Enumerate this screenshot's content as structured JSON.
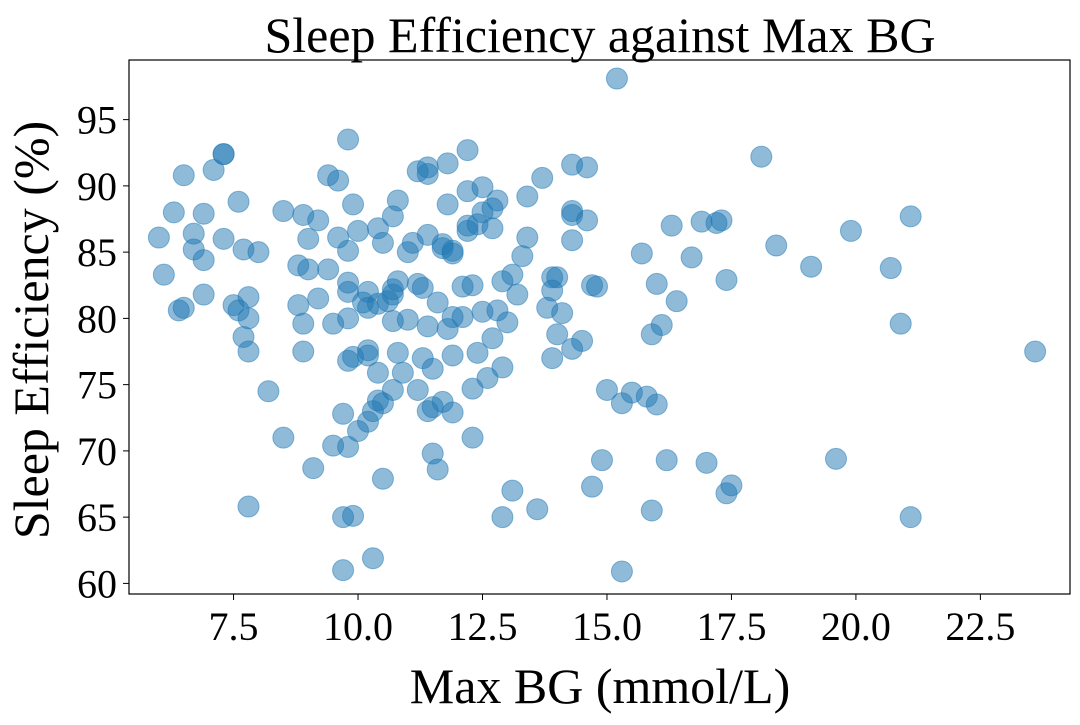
{
  "chart_data": {
    "type": "scatter",
    "title": "Sleep Efficiency against Max BG",
    "xlabel": "Max BG (mmol/L)",
    "ylabel": "Sleep Efficiency (%)",
    "xlim": [
      5.4,
      24.3
    ],
    "ylim": [
      59.2,
      99.5
    ],
    "xticks": [
      7.5,
      10.0,
      12.5,
      15.0,
      17.5,
      20.0,
      22.5
    ],
    "xtick_labels": [
      "7.5",
      "10.0",
      "12.5",
      "15.0",
      "17.5",
      "20.0",
      "22.5"
    ],
    "yticks": [
      60,
      65,
      70,
      75,
      80,
      85,
      90,
      95
    ],
    "ytick_labels": [
      "60",
      "65",
      "70",
      "75",
      "80",
      "85",
      "90",
      "95"
    ],
    "grid": false,
    "legend": false,
    "marker_color": "#1f77b4",
    "marker_alpha": 0.5,
    "series": [
      {
        "x": [
          6.0,
          6.1,
          6.3,
          6.4,
          6.5,
          6.5,
          6.7,
          6.7,
          6.9,
          6.9,
          6.9,
          7.1,
          7.3,
          7.3,
          7.3,
          7.5,
          7.6,
          7.6,
          7.7,
          7.7,
          7.8,
          7.8,
          7.8,
          7.8,
          8.0,
          8.2,
          8.5,
          8.5,
          8.8,
          8.8,
          8.9,
          8.9,
          8.9,
          9.0,
          9.0,
          9.1,
          9.2,
          9.2,
          9.4,
          9.4,
          9.5,
          9.5,
          9.6,
          9.6,
          9.7,
          9.7,
          9.7,
          9.8,
          9.8,
          9.8,
          9.8,
          9.8,
          9.8,
          9.8,
          9.9,
          9.9,
          9.9,
          10.0,
          10.0,
          10.1,
          10.2,
          10.2,
          10.2,
          10.2,
          10.2,
          10.3,
          10.3,
          10.4,
          10.4,
          10.4,
          10.4,
          10.5,
          10.5,
          10.5,
          10.6,
          10.7,
          10.7,
          10.7,
          10.7,
          10.7,
          10.8,
          10.8,
          10.8,
          10.9,
          11.0,
          11.0,
          11.1,
          11.2,
          11.2,
          11.2,
          11.3,
          11.3,
          11.4,
          11.4,
          11.4,
          11.4,
          11.4,
          11.5,
          11.5,
          11.5,
          11.6,
          11.6,
          11.7,
          11.7,
          11.7,
          11.8,
          11.8,
          11.8,
          11.9,
          11.9,
          11.9,
          11.9,
          11.9,
          12.1,
          12.1,
          12.2,
          12.2,
          12.2,
          12.2,
          12.3,
          12.3,
          12.3,
          12.4,
          12.4,
          12.5,
          12.5,
          12.5,
          12.6,
          12.7,
          12.7,
          12.7,
          12.8,
          12.8,
          12.9,
          12.9,
          12.9,
          13.0,
          13.1,
          13.1,
          13.2,
          13.3,
          13.4,
          13.4,
          13.6,
          13.7,
          13.8,
          13.9,
          13.9,
          13.9,
          14.0,
          14.0,
          14.1,
          14.3,
          14.3,
          14.3,
          14.3,
          14.3,
          14.5,
          14.6,
          14.6,
          14.7,
          14.7,
          14.8,
          14.9,
          15.0,
          15.2,
          15.3,
          15.3,
          15.5,
          15.7,
          15.8,
          15.9,
          15.9,
          16.0,
          16.0,
          16.1,
          16.2,
          16.3,
          16.4,
          16.7,
          16.9,
          17.0,
          17.2,
          17.3,
          17.4,
          17.4,
          17.5,
          18.1,
          18.4,
          19.1,
          19.6,
          19.9,
          20.7,
          20.9,
          21.1,
          21.1,
          23.6
        ],
        "y": [
          86.1,
          83.3,
          88.0,
          80.6,
          90.8,
          80.8,
          86.4,
          85.2,
          81.8,
          84.4,
          87.9,
          91.2,
          92.4,
          92.4,
          86.0,
          81.0,
          80.6,
          88.8,
          85.2,
          78.6,
          81.6,
          80.0,
          77.5,
          65.8,
          85.0,
          74.5,
          71.0,
          88.1,
          84.0,
          81.0,
          87.8,
          79.6,
          77.5,
          83.7,
          86.0,
          68.7,
          87.4,
          81.5,
          90.8,
          83.7,
          79.6,
          70.4,
          86.1,
          90.4,
          72.8,
          61.0,
          65.0,
          93.5,
          85.1,
          82.7,
          82.0,
          80.0,
          76.8,
          70.3,
          65.1,
          88.6,
          77.1,
          71.5,
          86.6,
          81.2,
          77.6,
          77.2,
          72.2,
          82.0,
          80.8,
          61.9,
          73.0,
          73.8,
          75.9,
          81.1,
          86.8,
          73.6,
          67.9,
          85.7,
          81.3,
          79.8,
          81.8,
          82.2,
          74.6,
          87.7,
          82.8,
          88.9,
          77.4,
          75.9,
          85.0,
          79.9,
          85.7,
          82.6,
          74.6,
          91.1,
          82.3,
          77.0,
          91.4,
          90.9,
          86.3,
          79.4,
          73.0,
          69.8,
          73.3,
          76.2,
          81.2,
          68.6,
          85.6,
          85.3,
          73.7,
          79.2,
          88.6,
          91.7,
          85.1,
          84.9,
          77.2,
          72.9,
          80.1,
          82.4,
          80.1,
          92.7,
          89.6,
          87.0,
          86.6,
          71.0,
          82.5,
          74.7,
          77.4,
          87.1,
          89.9,
          88.0,
          80.5,
          75.5,
          88.3,
          86.8,
          78.5,
          80.6,
          88.9,
          65.0,
          82.8,
          76.3,
          79.7,
          83.3,
          67.0,
          81.8,
          84.7,
          86.1,
          89.2,
          65.6,
          90.6,
          80.8,
          77.0,
          82.1,
          83.1,
          78.8,
          83.1,
          80.4,
          88.1,
          87.8,
          85.9,
          77.7,
          91.6,
          78.3,
          87.4,
          91.4,
          82.5,
          67.3,
          82.4,
          69.3,
          74.6,
          98.1,
          73.6,
          60.9,
          74.4,
          84.9,
          74.1,
          65.5,
          78.8,
          73.5,
          82.6,
          79.5,
          69.3,
          87.0,
          81.3,
          84.6,
          87.3,
          69.1,
          87.2,
          87.4,
          66.8,
          82.9,
          67.4,
          92.2,
          85.5,
          83.9,
          69.4,
          86.6,
          83.8,
          79.6,
          87.7,
          65.0,
          77.5
        ]
      }
    ]
  }
}
